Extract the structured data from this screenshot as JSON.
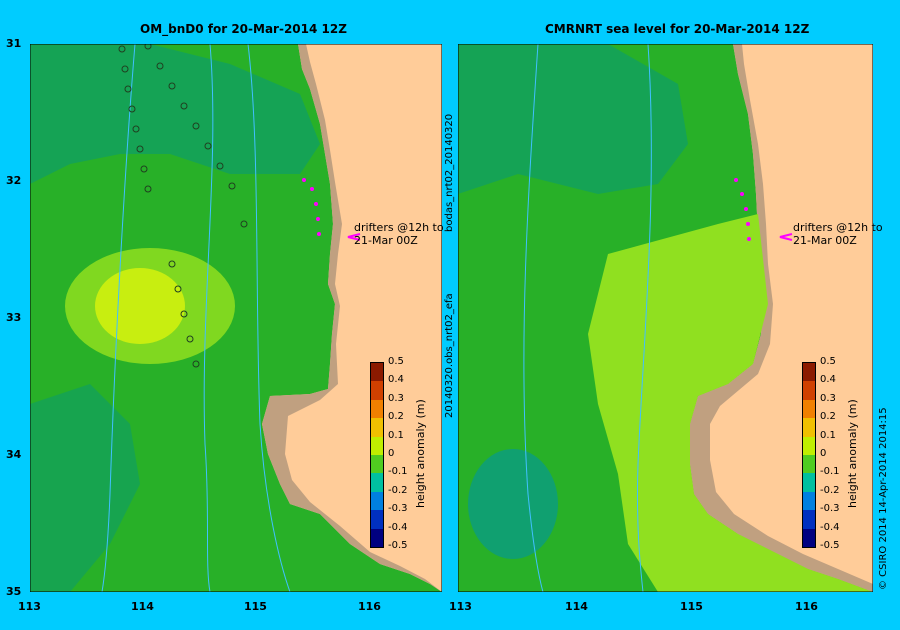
{
  "left_panel": {
    "title": "OM_bnD0 for 20-Mar-2014 12Z",
    "annotation_line1": "drifters @12h to",
    "annotation_line2": "21-Mar 00Z"
  },
  "right_panel": {
    "title": "CMRNRT sea level  for 20-Mar-2014 12Z",
    "annotation_line1": "drifters @12h to",
    "annotation_line2": "21-Mar 00Z",
    "side_label_top": "bodas_nrt02_20140320",
    "side_label_bottom": "20140320.obs_nrt02_efa"
  },
  "y_axis_labels": [
    "31",
    "32",
    "33",
    "34",
    "35"
  ],
  "left_x_axis_labels": [
    "113",
    "114",
    "115",
    "116"
  ],
  "right_x_axis_labels": [
    "113",
    "114",
    "115",
    "116"
  ],
  "colorbar": {
    "title": "height anomaly (m)",
    "ticks": [
      "0.5",
      "0.4",
      "0.3",
      "0.2",
      "0.1",
      "0",
      "-0.1",
      "-0.2",
      "-0.3",
      "-0.4",
      "-0.5"
    ],
    "colors": [
      "#8b1a00",
      "#d04000",
      "#f08000",
      "#f0c000",
      "#c0ee00",
      "#50cc20",
      "#00c0a0",
      "#0080e0",
      "#0030c0",
      "#000080"
    ]
  },
  "credit": "© CSIRO 2014   14-Apr-2014 2014:15",
  "colors": {
    "background": "#00ccff",
    "land": "#ffcc99",
    "shelf": "#c0a080",
    "drifter": "#ff00ff",
    "contour": "#40c0ff"
  }
}
